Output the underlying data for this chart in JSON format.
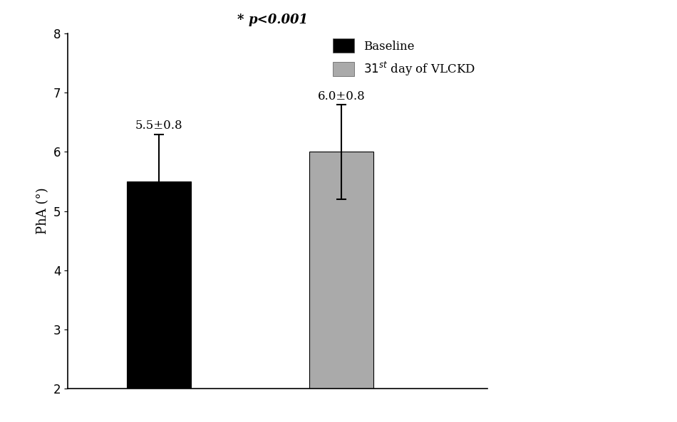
{
  "values": [
    5.5,
    6.0
  ],
  "errors": [
    0.8,
    0.8
  ],
  "bar_colors": [
    "#000000",
    "#aaaaaa"
  ],
  "bar_width": 0.35,
  "bar_positions": [
    1,
    2
  ],
  "ylim": [
    2,
    8
  ],
  "yticks": [
    2,
    3,
    4,
    5,
    6,
    7,
    8
  ],
  "ylabel": "PhA (°)",
  "ylabel_fontsize": 13,
  "bar_labels": [
    "5.5±0.8",
    "6.0±0.8"
  ],
  "background_color": "#ffffff",
  "tick_fontsize": 12,
  "label_fontsize": 12,
  "error_capsize": 5,
  "error_linewidth": 1.5,
  "xlim": [
    0.5,
    2.8
  ]
}
